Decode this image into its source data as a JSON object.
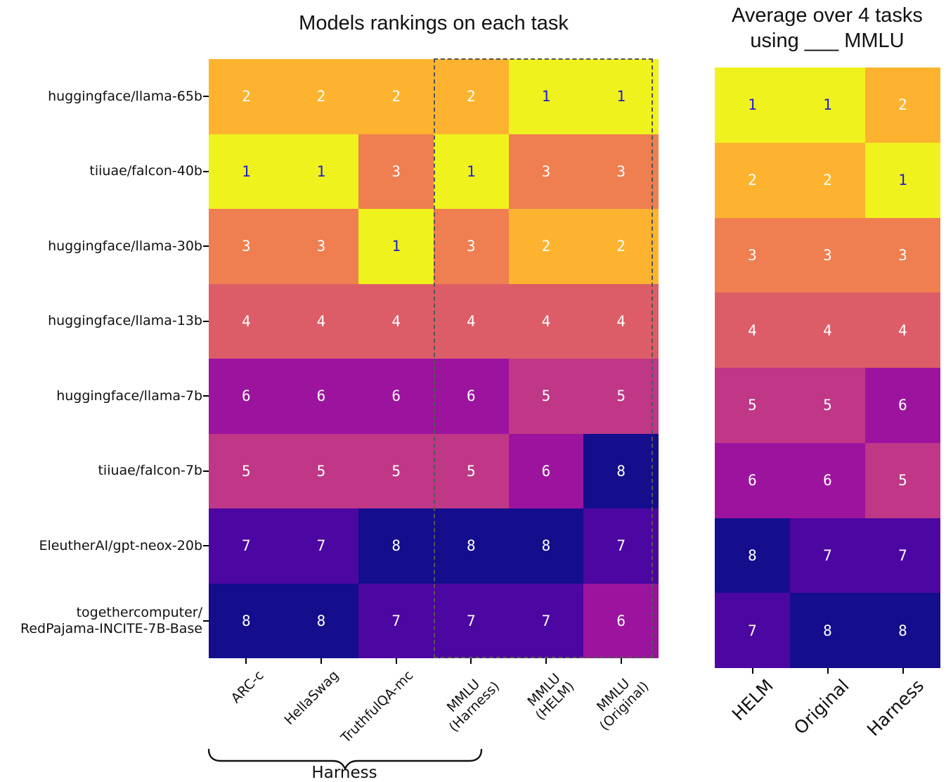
{
  "titles": {
    "left": "Models rankings on each task",
    "right": "Average over 4 tasks\nusing ___ MMLU"
  },
  "brace_label": "Harness",
  "rank_colors": {
    "1": "#f0f21e",
    "2": "#fdb32f",
    "3": "#ef7e50",
    "4": "#dc5d68",
    "5": "#bf3786",
    "6": "#9c149e",
    "7": "#4c06a1",
    "8": "#140e8c"
  },
  "cell_text_colors": {
    "rank1": "#2020cc",
    "default": "#ffffff"
  },
  "highlight_box": {
    "style": "dashed",
    "color": "#555555",
    "around": "MMLU (Harness), MMLU (HELM), MMLU (Original)"
  },
  "chart_data": [
    {
      "type": "heatmap",
      "title": "Models rankings on each task",
      "rows": [
        "huggingface/llama-65b",
        "tiiuae/falcon-40b",
        "huggingface/llama-30b",
        "huggingface/llama-13b",
        "huggingface/llama-7b",
        "tiiuae/falcon-7b",
        "EleutherAI/gpt-neox-20b",
        "togethercomputer/\nRedPajama-INCITE-7B-Base"
      ],
      "columns": [
        "ARC-c",
        "HellaSwag",
        "TruthfulQA-mc",
        "MMLU\n(Harness)",
        "MMLU\n(HELM)",
        "MMLU\n(Original)"
      ],
      "values": [
        [
          2,
          2,
          2,
          2,
          1,
          1
        ],
        [
          1,
          1,
          3,
          1,
          3,
          3
        ],
        [
          3,
          3,
          1,
          3,
          2,
          2
        ],
        [
          4,
          4,
          4,
          4,
          4,
          4
        ],
        [
          6,
          6,
          6,
          6,
          5,
          5
        ],
        [
          5,
          5,
          5,
          5,
          6,
          8
        ],
        [
          7,
          7,
          8,
          8,
          8,
          7
        ],
        [
          8,
          8,
          7,
          7,
          7,
          6
        ]
      ],
      "annotations": [
        "Harness brace spans ARC-c through MMLU (Harness)",
        "dashed box around the three MMLU columns"
      ],
      "value_range": [
        1,
        8
      ],
      "colormap": "plasma (1=yellow best, 8=dark navy worst)"
    },
    {
      "type": "heatmap",
      "title": "Average over 4 tasks using ___ MMLU",
      "rows": [
        "huggingface/llama-65b",
        "tiiuae/falcon-40b",
        "huggingface/llama-30b",
        "huggingface/llama-13b",
        "huggingface/llama-7b",
        "tiiuae/falcon-7b",
        "EleutherAI/gpt-neox-20b",
        "togethercomputer/\nRedPajama-INCITE-7B-Base"
      ],
      "columns": [
        "HELM",
        "Original",
        "Harness"
      ],
      "values": [
        [
          1,
          1,
          2
        ],
        [
          2,
          2,
          1
        ],
        [
          3,
          3,
          3
        ],
        [
          4,
          4,
          4
        ],
        [
          5,
          5,
          6
        ],
        [
          6,
          6,
          5
        ],
        [
          8,
          7,
          7
        ],
        [
          7,
          8,
          8
        ]
      ],
      "value_range": [
        1,
        8
      ],
      "colormap": "plasma (1=yellow best, 8=dark navy worst)"
    }
  ]
}
